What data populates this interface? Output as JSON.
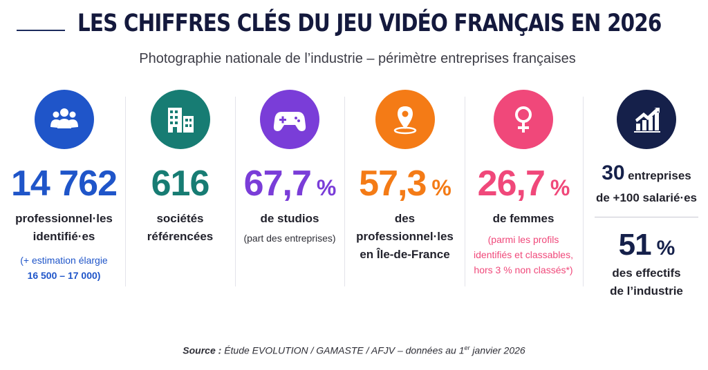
{
  "header": {
    "title": "LES CHIFFRES CLÉS DU JEU VIDÉO FRANÇAIS EN 2026",
    "subtitle": "Photographie nationale de l’industrie – périmètre entreprises françaises"
  },
  "stats": [
    {
      "icon": "people-group-icon",
      "color": "#1f55c9",
      "value": "14 762",
      "unit": "",
      "label1": "professionnel·les",
      "label2": "identifié·es",
      "note1": "(+ estimation élargie",
      "note2": "16 500 – 17 000)"
    },
    {
      "icon": "buildings-icon",
      "color": "#177c73",
      "value": "616",
      "unit": "",
      "label1": "sociétés",
      "label2": "référencées",
      "note1": "",
      "note2": ""
    },
    {
      "icon": "gamepad-icon",
      "color": "#7a3dd8",
      "value": "67,7",
      "unit": "%",
      "label1": "de studios",
      "label2": "",
      "note1": "(part des entreprises)",
      "note2": ""
    },
    {
      "icon": "map-pin-icon",
      "color": "#f47b16",
      "value": "57,3",
      "unit": "%",
      "label1": "des professionnel·les",
      "label2": "en Île-de-France",
      "note1": "",
      "note2": ""
    },
    {
      "icon": "female-symbol-icon",
      "color": "#f0487a",
      "value": "26,7",
      "unit": "%",
      "label1": "de femmes",
      "label2": "",
      "note1": "(parmi les profils",
      "note2": "identifiés et classables,",
      "note3": "hors 3 % non classés*)"
    },
    {
      "icon": "growth-chart-icon",
      "color": "#15204a",
      "value_a": "30",
      "label_a": "entreprises",
      "label_a2": "de +100 salarié·es",
      "value_b": "51",
      "unit_b": "%",
      "label_b1": "des effectifs",
      "label_b2": "de l’industrie"
    }
  ],
  "source": {
    "prefix": "Source :",
    "text": "Étude EVOLUTION / GAMASTE / AFJV – données au 1",
    "sup": "er",
    "suffix": " janvier 2026"
  }
}
